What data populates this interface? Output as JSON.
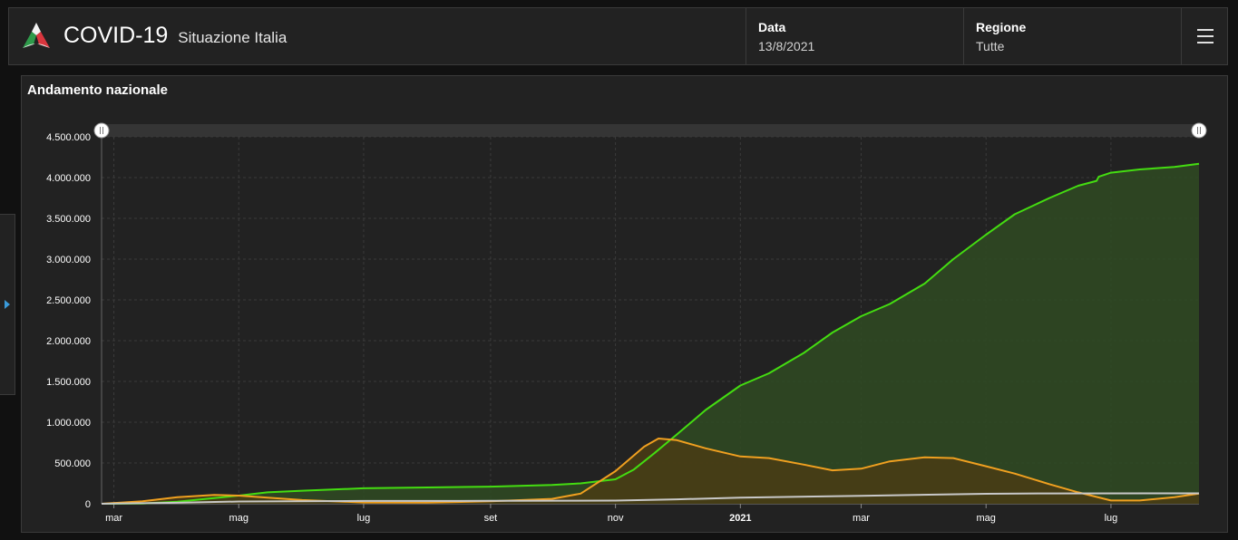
{
  "header": {
    "title": "COVID-19",
    "subtitle": "Situazione Italia",
    "data_label": "Data",
    "data_value": "13/8/2021",
    "regione_label": "Regione",
    "regione_value": "Tutte",
    "logo_icon": "italy-flag-triangle-logo-icon",
    "menu_icon": "hamburger-menu-icon"
  },
  "side_panel": {
    "toggle_icon": "triangle-right-icon",
    "accent": "#3a9ad9"
  },
  "panel": {
    "title": "Andamento nazionale"
  },
  "chart_data": {
    "type": "area",
    "x_type": "date",
    "x_range": [
      "2020-02-24",
      "2021-08-13"
    ],
    "ylim": [
      0,
      4500000
    ],
    "y_ticks": [
      0,
      500000,
      1000000,
      1500000,
      2000000,
      2500000,
      3000000,
      3500000,
      4000000,
      4500000
    ],
    "y_tick_labels": [
      "0",
      "500.000",
      "1.000.000",
      "1.500.000",
      "2.000.000",
      "2.500.000",
      "3.000.000",
      "3.500.000",
      "4.000.000",
      "4.500.000"
    ],
    "x_ticks": [
      {
        "date": "2020-03-01",
        "label": "mar"
      },
      {
        "date": "2020-05-01",
        "label": "mag"
      },
      {
        "date": "2020-07-01",
        "label": "lug"
      },
      {
        "date": "2020-09-01",
        "label": "set"
      },
      {
        "date": "2020-11-01",
        "label": "nov"
      },
      {
        "date": "2021-01-01",
        "label": "2021",
        "bold": true
      },
      {
        "date": "2021-03-01",
        "label": "mar"
      },
      {
        "date": "2021-05-01",
        "label": "mag"
      },
      {
        "date": "2021-07-01",
        "label": "lug"
      }
    ],
    "grid": true,
    "range_selector": true,
    "series": [
      {
        "color": "#44dd11",
        "fill": "#2f4a22",
        "points": [
          [
            "2020-02-24",
            0
          ],
          [
            "2020-03-15",
            3000
          ],
          [
            "2020-04-01",
            25000
          ],
          [
            "2020-04-15",
            60000
          ],
          [
            "2020-05-01",
            100000
          ],
          [
            "2020-05-15",
            140000
          ],
          [
            "2020-06-01",
            160000
          ],
          [
            "2020-07-01",
            190000
          ],
          [
            "2020-08-01",
            200000
          ],
          [
            "2020-09-01",
            210000
          ],
          [
            "2020-10-01",
            230000
          ],
          [
            "2020-10-15",
            250000
          ],
          [
            "2020-11-01",
            300000
          ],
          [
            "2020-11-10",
            420000
          ],
          [
            "2020-11-20",
            620000
          ],
          [
            "2020-12-01",
            850000
          ],
          [
            "2020-12-15",
            1150000
          ],
          [
            "2021-01-01",
            1450000
          ],
          [
            "2021-01-15",
            1600000
          ],
          [
            "2021-02-01",
            1850000
          ],
          [
            "2021-02-15",
            2100000
          ],
          [
            "2021-03-01",
            2300000
          ],
          [
            "2021-03-15",
            2450000
          ],
          [
            "2021-04-01",
            2700000
          ],
          [
            "2021-04-15",
            3000000
          ],
          [
            "2021-05-01",
            3300000
          ],
          [
            "2021-05-15",
            3550000
          ],
          [
            "2021-06-01",
            3750000
          ],
          [
            "2021-06-15",
            3900000
          ],
          [
            "2021-06-24",
            3960000
          ],
          [
            "2021-06-25",
            4010000
          ],
          [
            "2021-07-01",
            4060000
          ],
          [
            "2021-07-15",
            4100000
          ],
          [
            "2021-08-01",
            4130000
          ],
          [
            "2021-08-13",
            4170000
          ]
        ]
      },
      {
        "color": "#f0a020",
        "fill": "#4a3c14",
        "points": [
          [
            "2020-02-24",
            0
          ],
          [
            "2020-03-15",
            30000
          ],
          [
            "2020-04-01",
            80000
          ],
          [
            "2020-04-19",
            108000
          ],
          [
            "2020-05-01",
            100000
          ],
          [
            "2020-05-15",
            75000
          ],
          [
            "2020-06-01",
            45000
          ],
          [
            "2020-07-01",
            15000
          ],
          [
            "2020-08-01",
            13000
          ],
          [
            "2020-09-01",
            30000
          ],
          [
            "2020-10-01",
            60000
          ],
          [
            "2020-10-15",
            125000
          ],
          [
            "2020-11-01",
            400000
          ],
          [
            "2020-11-15",
            700000
          ],
          [
            "2020-11-22",
            800000
          ],
          [
            "2020-12-01",
            780000
          ],
          [
            "2020-12-15",
            680000
          ],
          [
            "2021-01-01",
            580000
          ],
          [
            "2021-01-15",
            560000
          ],
          [
            "2021-02-01",
            480000
          ],
          [
            "2021-02-15",
            410000
          ],
          [
            "2021-03-01",
            430000
          ],
          [
            "2021-03-15",
            520000
          ],
          [
            "2021-04-01",
            570000
          ],
          [
            "2021-04-15",
            560000
          ],
          [
            "2021-05-01",
            460000
          ],
          [
            "2021-05-15",
            370000
          ],
          [
            "2021-06-01",
            240000
          ],
          [
            "2021-06-15",
            140000
          ],
          [
            "2021-07-01",
            40000
          ],
          [
            "2021-07-15",
            40000
          ],
          [
            "2021-08-01",
            80000
          ],
          [
            "2021-08-13",
            125000
          ]
        ]
      },
      {
        "color": "#c8c8c8",
        "fill": "none",
        "points": [
          [
            "2020-02-24",
            0
          ],
          [
            "2020-04-01",
            12000
          ],
          [
            "2020-05-01",
            28000
          ],
          [
            "2020-07-01",
            35000
          ],
          [
            "2020-09-01",
            35600
          ],
          [
            "2020-11-01",
            39000
          ],
          [
            "2020-12-01",
            55000
          ],
          [
            "2021-01-01",
            75000
          ],
          [
            "2021-03-01",
            98000
          ],
          [
            "2021-05-01",
            122000
          ],
          [
            "2021-06-01",
            127000
          ],
          [
            "2021-08-13",
            128000
          ]
        ]
      }
    ]
  }
}
